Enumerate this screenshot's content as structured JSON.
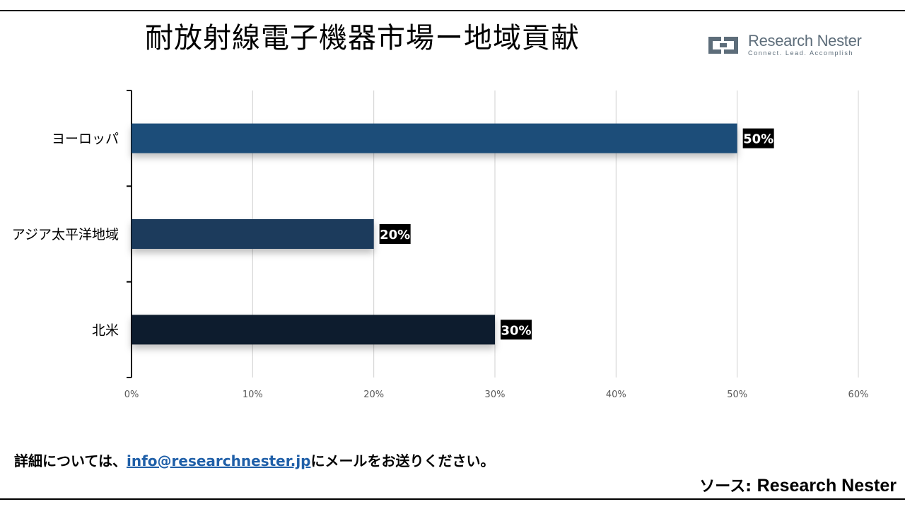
{
  "page": {
    "title": "耐放射線電子機器市場ー地域貢献",
    "logo": {
      "name": "Research Nester",
      "tagline": "Connect. Lead. Accomplish"
    },
    "footer": {
      "prefix": "詳細については、",
      "email": "info@researchnester.jp",
      "suffix": "にメールをお送りください。"
    },
    "source": {
      "label": "ソース: ",
      "name": "Research Nester"
    }
  },
  "colors": {
    "europe": "#1f4e79",
    "apac": "#1b3a5c",
    "north_america": "#0f1f2e",
    "label_bg": "#000000",
    "label_text": "#ffffff",
    "grid": "#d0d0d0",
    "axis": "#000000",
    "tick_text": "#595959"
  },
  "chart_data": {
    "type": "bar",
    "orientation": "horizontal",
    "categories": [
      "ヨーロッパ",
      "アジア太平洋地域",
      "北米"
    ],
    "values": [
      50,
      20,
      30
    ],
    "data_labels": [
      "50%",
      "20%",
      "30%"
    ],
    "xlim": [
      0,
      60
    ],
    "xticks": [
      0,
      10,
      20,
      30,
      40,
      50,
      60
    ],
    "xtick_labels": [
      "0%",
      "10%",
      "20%",
      "30%",
      "40%",
      "50%",
      "60%"
    ],
    "grid": "vertical",
    "legend": "none"
  }
}
